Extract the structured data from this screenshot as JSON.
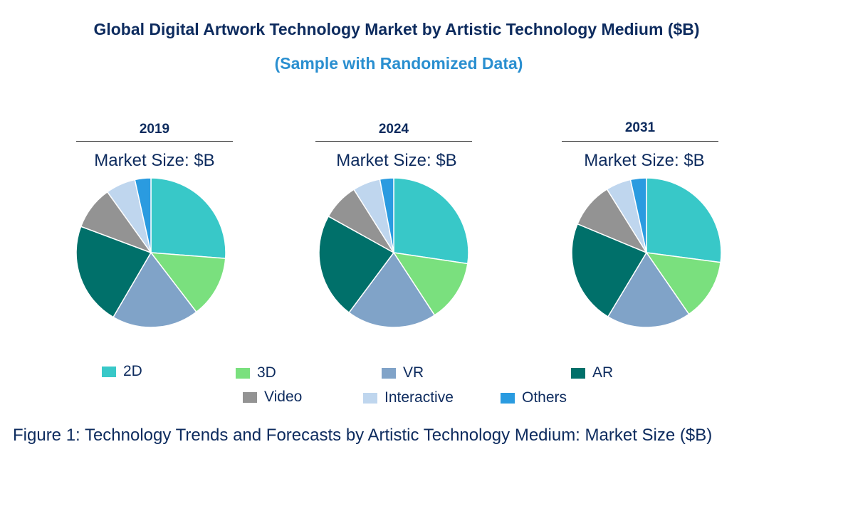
{
  "chart_data": {
    "type": "pie",
    "title": "Global Digital Artwork Technology Market by Artistic Technology Medium ($B)",
    "subtitle": "(Sample with Randomized Data)",
    "subtitle_label": "Market Size: $B",
    "categories": [
      "2D",
      "3D",
      "VR",
      "AR",
      "Video",
      "Interactive",
      "Others"
    ],
    "colors": [
      "#38c8c8",
      "#7ae07e",
      "#80a3c8",
      "#00706a",
      "#939393",
      "#bfd6ee",
      "#2a9be0"
    ],
    "pies": [
      {
        "year": "2019",
        "values": [
          26.5,
          13.5,
          19.0,
          22.5,
          9.5,
          6.5,
          3.5
        ]
      },
      {
        "year": "2024",
        "values": [
          27.5,
          13.5,
          19.5,
          23.0,
          8.0,
          6.0,
          3.0
        ]
      },
      {
        "year": "2031",
        "values": [
          27.5,
          13.5,
          18.5,
          23.0,
          10.0,
          5.5,
          3.5
        ]
      }
    ],
    "legend_position": "bottom"
  },
  "caption": "Figure 1: Technology Trends and Forecasts by Artistic Technology Medium: Market Size ($B)"
}
